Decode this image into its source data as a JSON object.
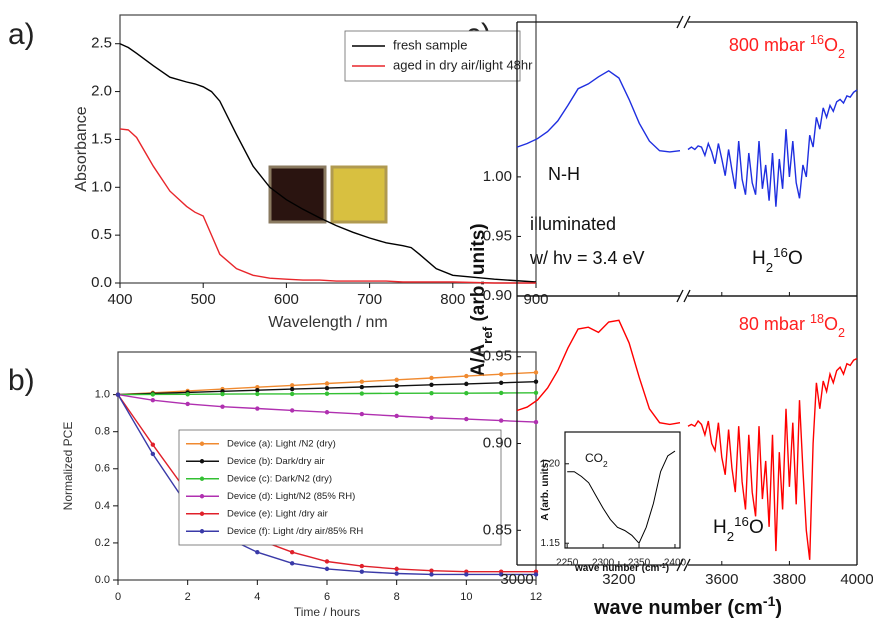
{
  "panel_labels": [
    "a)",
    "b)",
    "c)"
  ],
  "chart_data": [
    {
      "type": "line",
      "xlabel": "Wavelength / nm",
      "ylabel": "Absorbance",
      "x": [
        400,
        410,
        420,
        440,
        460,
        480,
        490,
        500,
        510,
        520,
        540,
        560,
        580,
        600,
        620,
        640,
        660,
        680,
        700,
        720,
        740,
        750,
        760,
        780,
        800,
        850,
        900
      ],
      "series": [
        {
          "name": "fresh sample",
          "color": "#000000",
          "values": [
            2.5,
            2.46,
            2.4,
            2.27,
            2.15,
            2.1,
            2.08,
            2.05,
            2.0,
            1.9,
            1.55,
            1.22,
            1.0,
            0.87,
            0.77,
            0.68,
            0.6,
            0.53,
            0.47,
            0.42,
            0.39,
            0.37,
            0.3,
            0.15,
            0.08,
            0.04,
            0.01
          ]
        },
        {
          "name": "aged in dry air/light 48hr",
          "color": "#e8262b",
          "values": [
            1.61,
            1.6,
            1.52,
            1.22,
            0.96,
            0.8,
            0.74,
            0.7,
            0.5,
            0.3,
            0.15,
            0.08,
            0.05,
            0.04,
            0.03,
            0.03,
            0.02,
            0.02,
            0.02,
            0.02,
            0.01,
            0.01,
            0.01,
            0.01,
            0.01,
            0.0,
            0.0
          ]
        }
      ],
      "xlim": [
        400,
        900
      ],
      "xticks": [
        400,
        500,
        600,
        700,
        800,
        900
      ],
      "ylim": [
        0,
        2.8
      ],
      "yticks": [
        {
          "value": 0,
          "label": "0.0"
        },
        0.5,
        {
          "value": 1,
          "label": "1.0"
        },
        1.5,
        {
          "value": 2,
          "label": "2.0"
        },
        2.5
      ],
      "legend": "upper right",
      "grid": false
    },
    {
      "type": "line",
      "xlabel": "Time / hours",
      "ylabel": "Normalized PCE",
      "markers": true,
      "x": [
        0,
        1,
        2,
        3,
        4,
        5,
        6,
        7,
        8,
        9,
        10,
        11,
        12
      ],
      "series": [
        {
          "name": "Device (a): Light /N2 (dry)",
          "color": "#f08a30",
          "values": [
            1.0,
            1.01,
            1.02,
            1.03,
            1.04,
            1.05,
            1.06,
            1.07,
            1.08,
            1.09,
            1.1,
            1.11,
            1.12
          ]
        },
        {
          "name": "Device (b): Dark/dry air",
          "color": "#111111",
          "values": [
            1.0,
            1.006,
            1.012,
            1.018,
            1.024,
            1.03,
            1.035,
            1.041,
            1.047,
            1.053,
            1.058,
            1.064,
            1.07
          ]
        },
        {
          "name": "Device (c): Dark/N2 (dry)",
          "color": "#33c033",
          "values": [
            1.0,
            1.001,
            1.002,
            1.003,
            1.004,
            1.004,
            1.005,
            1.006,
            1.007,
            1.008,
            1.008,
            1.009,
            1.01
          ]
        },
        {
          "name": "Device (d): Light/N2 (85% RH)",
          "color": "#b030b0",
          "values": [
            1.0,
            0.97,
            0.95,
            0.935,
            0.925,
            0.915,
            0.905,
            0.895,
            0.885,
            0.875,
            0.868,
            0.86,
            0.852
          ]
        },
        {
          "name": "Device (e): Light /dry air",
          "color": "#e0202a",
          "values": [
            1.0,
            0.73,
            0.47,
            0.32,
            0.22,
            0.15,
            0.1,
            0.075,
            0.06,
            0.05,
            0.045,
            0.045,
            0.045
          ]
        },
        {
          "name": "Device (f): Light /dry air/85% RH",
          "color": "#3a3aa8",
          "values": [
            1.0,
            0.68,
            0.4,
            0.24,
            0.15,
            0.09,
            0.06,
            0.045,
            0.035,
            0.03,
            0.03,
            0.03,
            0.03
          ]
        }
      ],
      "xlim": [
        0,
        12
      ],
      "xticks": [
        0,
        2,
        4,
        6,
        8,
        10,
        12
      ],
      "ylim": [
        0,
        1.23
      ],
      "yticks": [
        {
          "value": 0,
          "label": "0.0"
        },
        0.2,
        0.4,
        0.6,
        0.8,
        {
          "value": 1,
          "label": "1.0"
        }
      ],
      "legend": "lower right",
      "grid": false
    },
    {
      "type": "line",
      "ylabel": [
        "A/A",
        "ref",
        " (arb. units)"
      ],
      "annotations": {
        "pressure": [
          "800 mbar ",
          "16",
          "O",
          "2"
        ],
        "band": "N-H",
        "state": "illuminated",
        "photon": "w/ hν = 3.4 eV",
        "water": [
          "H",
          "2",
          "16",
          "O"
        ]
      },
      "x": [
        3000,
        3020,
        3040,
        3060,
        3080,
        3100,
        3120,
        3140,
        3160,
        3180,
        3200,
        3220,
        3240,
        3260,
        3280,
        3300,
        3320,
        3500,
        3510,
        3520,
        3530,
        3540,
        3550,
        3560,
        3570,
        3580,
        3590,
        3600,
        3610,
        3620,
        3630,
        3640,
        3650,
        3660,
        3670,
        3680,
        3690,
        3700,
        3710,
        3720,
        3730,
        3740,
        3750,
        3760,
        3770,
        3780,
        3790,
        3800,
        3810,
        3820,
        3830,
        3840,
        3850,
        3860,
        3870,
        3880,
        3890,
        3900,
        3910,
        3920,
        3930,
        3940,
        3950,
        3960,
        3970,
        3980,
        3990,
        4000
      ],
      "series": [
        {
          "color": "#1f2fe0",
          "values": [
            1.025,
            1.028,
            1.032,
            1.038,
            1.047,
            1.06,
            1.074,
            1.078,
            1.084,
            1.089,
            1.083,
            1.065,
            1.045,
            1.03,
            1.022,
            1.021,
            1.022,
            1.023,
            1.025,
            1.023,
            1.026,
            1.025,
            1.018,
            1.028,
            1.021,
            1.011,
            1.028,
            1.015,
            1.001,
            1.023,
            1.006,
            0.99,
            1.03,
            0.998,
            0.985,
            1.02,
            0.995,
            0.985,
            1.03,
            0.99,
            1.01,
            0.98,
            1.02,
            0.975,
            1.015,
            0.99,
            1.04,
            1.0,
            1.03,
            0.995,
            0.982,
            1.01,
            1.0,
            1.035,
            1.025,
            1.05,
            1.04,
            1.058,
            1.05,
            1.06,
            1.055,
            1.063,
            1.065,
            1.062,
            1.068,
            1.067,
            1.071,
            1.073
          ]
        }
      ],
      "xlim": [
        3000,
        4000
      ],
      "xbreak": [
        3320,
        3500
      ],
      "ylim": [
        0.9,
        1.13
      ],
      "yticks": [
        {
          "value": 0.9,
          "label": "0.90"
        },
        0.95,
        {
          "value": 1,
          "label": "1.00"
        }
      ],
      "grid": false
    },
    {
      "type": "line",
      "xlabel": [
        "wave number (cm",
        "-1",
        ")"
      ],
      "annotations": {
        "pressure": [
          "80 mbar ",
          "18",
          "O",
          "2"
        ],
        "water": [
          "H",
          "2",
          "16",
          "O"
        ]
      },
      "x": [
        3000,
        3020,
        3040,
        3060,
        3080,
        3100,
        3120,
        3140,
        3160,
        3180,
        3200,
        3220,
        3240,
        3260,
        3280,
        3300,
        3320,
        3500,
        3510,
        3520,
        3530,
        3540,
        3550,
        3560,
        3570,
        3580,
        3590,
        3600,
        3610,
        3620,
        3630,
        3640,
        3650,
        3660,
        3670,
        3680,
        3690,
        3700,
        3710,
        3720,
        3730,
        3740,
        3750,
        3760,
        3770,
        3780,
        3790,
        3800,
        3810,
        3820,
        3830,
        3840,
        3850,
        3860,
        3870,
        3880,
        3890,
        3900,
        3910,
        3920,
        3930,
        3940,
        3950,
        3960,
        3970,
        3980,
        3990,
        4000
      ],
      "series": [
        {
          "color": "#ff0000",
          "values": [
            0.919,
            0.921,
            0.925,
            0.932,
            0.942,
            0.955,
            0.966,
            0.967,
            0.964,
            0.97,
            0.971,
            0.958,
            0.938,
            0.92,
            0.912,
            0.911,
            0.912,
            0.91,
            0.911,
            0.91,
            0.913,
            0.911,
            0.905,
            0.913,
            0.9,
            0.896,
            0.912,
            0.892,
            0.882,
            0.908,
            0.886,
            0.872,
            0.91,
            0.878,
            0.862,
            0.905,
            0.872,
            0.858,
            0.91,
            0.868,
            0.89,
            0.852,
            0.905,
            0.838,
            0.895,
            0.862,
            0.92,
            0.875,
            0.912,
            0.865,
            0.925,
            0.885,
            0.85,
            0.833,
            0.9,
            0.935,
            0.92,
            0.936,
            0.93,
            0.94,
            0.935,
            0.942,
            0.944,
            0.94,
            0.946,
            0.945,
            0.948,
            0.949
          ]
        }
      ],
      "xlim": [
        3000,
        4000
      ],
      "xbreak": [
        3320,
        3500
      ],
      "xticks": [
        3000,
        3200,
        3600,
        3800,
        4000
      ],
      "ylim": [
        0.83,
        0.985
      ],
      "yticks": [
        0.85,
        {
          "value": 0.9,
          "label": "0.90"
        },
        0.95
      ],
      "grid": false
    },
    {
      "type": "line",
      "xlabel": [
        "wave number (cm",
        "-1",
        ")"
      ],
      "ylabel": "A (arb. units)",
      "annotation": [
        "CO",
        "2"
      ],
      "x": [
        2250,
        2260,
        2270,
        2280,
        2290,
        2300,
        2310,
        2320,
        2330,
        2340,
        2350,
        2360,
        2370,
        2380,
        2390,
        2400
      ],
      "series": [
        {
          "color": "#000000",
          "values": [
            1.195,
            1.195,
            1.192,
            1.188,
            1.18,
            1.172,
            1.165,
            1.16,
            1.158,
            1.155,
            1.15,
            1.16,
            1.175,
            1.195,
            1.205,
            1.208
          ]
        }
      ],
      "xlim": [
        2247,
        2407
      ],
      "xticks": [
        2250,
        2300,
        2350,
        2400
      ],
      "ylim": [
        1.147,
        1.22
      ],
      "yticks": [
        1.15,
        {
          "value": 1.2,
          "label": "1.20"
        }
      ],
      "grid": false
    }
  ]
}
